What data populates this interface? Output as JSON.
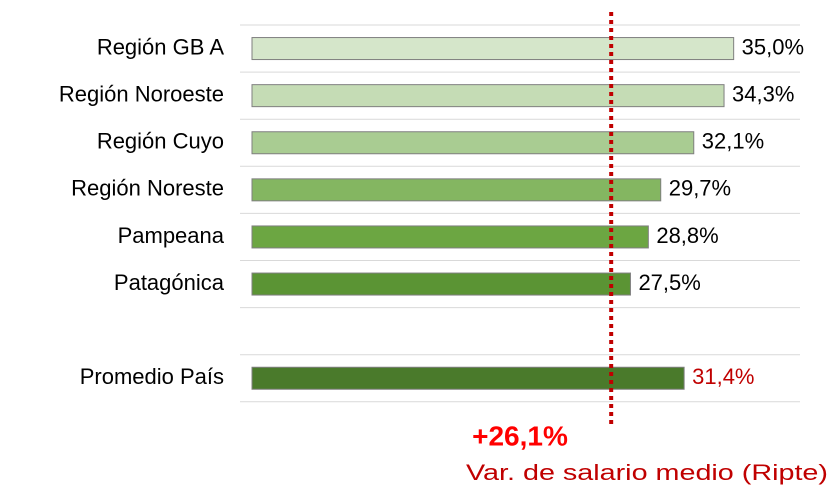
{
  "chart_data": {
    "type": "bar",
    "orientation": "horizontal",
    "categories": [
      "Región GB A",
      "Región Noroeste",
      "Región Cuyo",
      "Región Noreste",
      "Pampeana",
      "Patagónica",
      null,
      "Promedio País"
    ],
    "values": [
      35.0,
      34.3,
      32.1,
      29.7,
      28.8,
      27.5,
      null,
      31.4
    ],
    "value_labels": [
      "35,0%",
      "34,3%",
      "32,1%",
      "29,7%",
      "28,8%",
      "27,5%",
      null,
      "31,4%"
    ],
    "colors": [
      "#d5e6ca",
      "#c5dcb5",
      "#a9cc92",
      "#84b661",
      "#6ca642",
      "#5b9434",
      null,
      "#4a7a2b"
    ],
    "value_label_colors": [
      "#000000",
      "#000000",
      "#000000",
      "#000000",
      "#000000",
      "#000000",
      null,
      "#c00000"
    ],
    "xlim": [
      0,
      42
    ],
    "grid": true,
    "reference_line": {
      "value": 26.1,
      "label": "+26,1%",
      "caption": "Var. de salario medio (Ripte)",
      "color": "#c00000"
    }
  }
}
